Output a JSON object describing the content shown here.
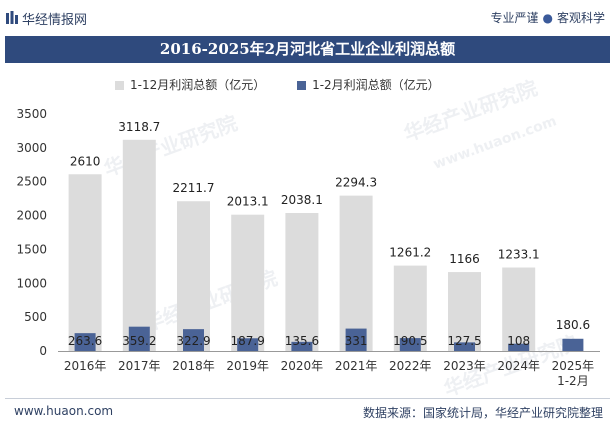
{
  "header": {
    "brand": "华经情报网",
    "tagline_left": "专业严谨",
    "tagline_right": "客观科学",
    "logo_icon": "bar-logo-icon"
  },
  "watermarks": [
    "华经产业研究院",
    "www.huaon.com"
  ],
  "chart_data": {
    "type": "bar",
    "title": "2016-2025年2月河北省工业企业利润总额",
    "categories": [
      "2016年",
      "2017年",
      "2018年",
      "2019年",
      "2020年",
      "2021年",
      "2022年",
      "2023年",
      "2024年",
      "2025年\n1-2月"
    ],
    "series": [
      {
        "name": "1-12月利润总额（亿元）",
        "color": "#dcdcdc",
        "values": [
          2610,
          3118.7,
          2211.7,
          2013.1,
          2038.1,
          2294.3,
          1261.2,
          1166,
          1233.1,
          null
        ]
      },
      {
        "name": "1-2月利润总额（亿元）",
        "color": "#4a6396",
        "values": [
          263.6,
          359.2,
          322.9,
          187.9,
          135.6,
          331,
          190.5,
          127.5,
          108,
          180.6
        ]
      }
    ],
    "value_labels_main": [
      "2610",
      "3118.7",
      "2211.7",
      "2013.1",
      "2038.1",
      "2294.3",
      "1261.2",
      "1166",
      "1233.1",
      ""
    ],
    "value_labels_small": [
      "263.6",
      "359.2",
      "322.9",
      "187.9",
      "135.6",
      "331",
      "190.5",
      "127.5",
      "108",
      "180.6"
    ],
    "yticks": [
      "0",
      "500",
      "1000",
      "1500",
      "2000",
      "2500",
      "3000",
      "3500"
    ],
    "ylim": [
      0,
      3500
    ],
    "xlabel": "",
    "ylabel": "",
    "legend_position": "top"
  },
  "footer": {
    "site": "www.huaon.com",
    "source": "数据来源：国家统计局，华经产业研究院整理"
  }
}
